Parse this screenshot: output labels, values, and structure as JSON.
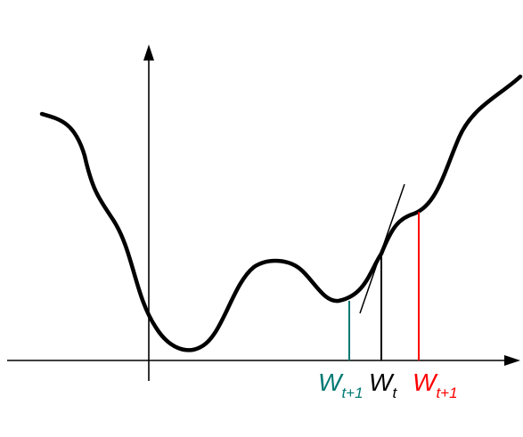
{
  "labels": [
    {
      "main": "W",
      "sub": "t+1",
      "color": "#007a73"
    },
    {
      "main": "W",
      "sub": "t",
      "color": "#000000"
    },
    {
      "main": "W",
      "sub": "t+1",
      "color": "#ff0000"
    }
  ],
  "colors": {
    "curve": "#000000",
    "axis": "#000000",
    "left_marker": "#007a73",
    "current_marker": "#000000",
    "right_marker": "#ff0000"
  }
}
